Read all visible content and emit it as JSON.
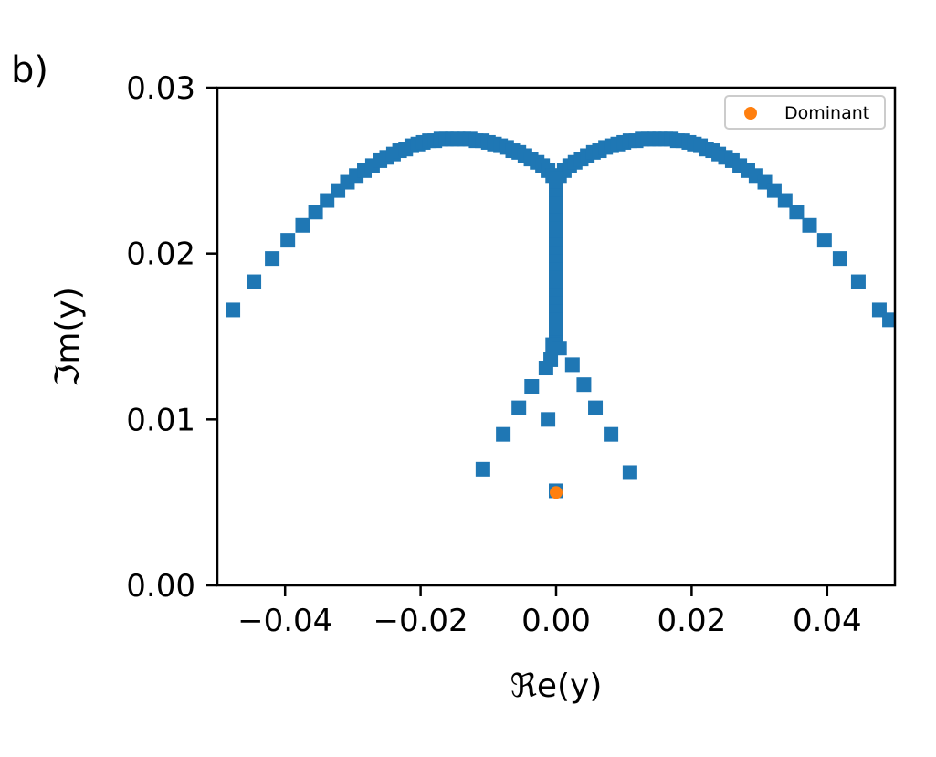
{
  "panel_label": "b)",
  "chart_data": {
    "type": "scatter",
    "xlabel": "ℜe(y)",
    "ylabel": "ℑm(y)",
    "xlim": [
      -0.05,
      0.05
    ],
    "ylim": [
      0.0,
      0.03
    ],
    "xticks": [
      -0.04,
      -0.02,
      0.0,
      0.02,
      0.04
    ],
    "xtick_labels": [
      "−0.04",
      "−0.02",
      "0.00",
      "0.02",
      "0.04"
    ],
    "yticks": [
      0.0,
      0.01,
      0.02,
      0.03
    ],
    "ytick_labels": [
      "0.00",
      "0.01",
      "0.02",
      "0.03"
    ],
    "grid": false,
    "legend_position": "top-right",
    "colors": {
      "series": "#1f77b4",
      "dominant": "#ff7f0e"
    },
    "series": [
      {
        "marker": "square",
        "points": [
          [
            -0.0477,
            0.0166
          ],
          [
            -0.0446,
            0.0183
          ],
          [
            -0.0419,
            0.0197
          ],
          [
            -0.0396,
            0.0208
          ],
          [
            -0.0374,
            0.0217
          ],
          [
            -0.0355,
            0.0225
          ],
          [
            -0.0338,
            0.0232
          ],
          [
            -0.0322,
            0.0238
          ],
          [
            -0.0308,
            0.0243
          ],
          [
            -0.0295,
            0.0247
          ],
          [
            -0.0283,
            0.025
          ],
          [
            -0.0271,
            0.0253
          ],
          [
            -0.026,
            0.0256
          ],
          [
            -0.025,
            0.0258
          ],
          [
            -0.024,
            0.026
          ],
          [
            -0.0231,
            0.0262
          ],
          [
            -0.0222,
            0.0263
          ],
          [
            -0.0213,
            0.0265
          ],
          [
            -0.0204,
            0.0266
          ],
          [
            -0.0196,
            0.0267
          ],
          [
            -0.0187,
            0.0268
          ],
          [
            -0.0179,
            0.0268
          ],
          [
            -0.017,
            0.0269
          ],
          [
            -0.0162,
            0.0269
          ],
          [
            -0.0153,
            0.0269
          ],
          [
            -0.0145,
            0.0269
          ],
          [
            -0.0136,
            0.0269
          ],
          [
            -0.0127,
            0.0269
          ],
          [
            -0.0118,
            0.0268
          ],
          [
            -0.0109,
            0.0268
          ],
          [
            -0.01,
            0.0267
          ],
          [
            -0.0091,
            0.0266
          ],
          [
            -0.0082,
            0.0265
          ],
          [
            -0.0073,
            0.0264
          ],
          [
            -0.0064,
            0.0262
          ],
          [
            -0.0055,
            0.0261
          ],
          [
            -0.0046,
            0.0259
          ],
          [
            -0.0037,
            0.0257
          ],
          [
            -0.0028,
            0.0255
          ],
          [
            -0.002,
            0.0253
          ],
          [
            -0.0012,
            0.025
          ],
          [
            -0.0005,
            0.0247
          ],
          [
            0.0005,
            0.0247
          ],
          [
            0.0012,
            0.025
          ],
          [
            0.002,
            0.0253
          ],
          [
            0.0028,
            0.0255
          ],
          [
            0.0037,
            0.0257
          ],
          [
            0.0046,
            0.0259
          ],
          [
            0.0055,
            0.0261
          ],
          [
            0.0064,
            0.0262
          ],
          [
            0.0073,
            0.0264
          ],
          [
            0.0082,
            0.0265
          ],
          [
            0.0091,
            0.0266
          ],
          [
            0.01,
            0.0267
          ],
          [
            0.0109,
            0.0268
          ],
          [
            0.0118,
            0.0268
          ],
          [
            0.0127,
            0.0269
          ],
          [
            0.0136,
            0.0269
          ],
          [
            0.0145,
            0.0269
          ],
          [
            0.0153,
            0.0269
          ],
          [
            0.0162,
            0.0269
          ],
          [
            0.017,
            0.0269
          ],
          [
            0.0179,
            0.0268
          ],
          [
            0.0187,
            0.0268
          ],
          [
            0.0196,
            0.0267
          ],
          [
            0.0204,
            0.0266
          ],
          [
            0.0213,
            0.0265
          ],
          [
            0.0222,
            0.0263
          ],
          [
            0.0231,
            0.0262
          ],
          [
            0.024,
            0.026
          ],
          [
            0.025,
            0.0258
          ],
          [
            0.026,
            0.0256
          ],
          [
            0.0271,
            0.0253
          ],
          [
            0.0283,
            0.025
          ],
          [
            0.0295,
            0.0247
          ],
          [
            0.0308,
            0.0243
          ],
          [
            0.0322,
            0.0238
          ],
          [
            0.0338,
            0.0232
          ],
          [
            0.0355,
            0.0225
          ],
          [
            0.0374,
            0.0217
          ],
          [
            0.0396,
            0.0208
          ],
          [
            0.0419,
            0.0197
          ],
          [
            0.0446,
            0.0183
          ],
          [
            0.0477,
            0.0166
          ],
          [
            0.0492,
            0.016
          ],
          [
            0.0,
            0.0245
          ],
          [
            0.0,
            0.024
          ],
          [
            0.0,
            0.0235
          ],
          [
            0.0,
            0.023
          ],
          [
            0.0,
            0.0225
          ],
          [
            0.0,
            0.022
          ],
          [
            0.0,
            0.0215
          ],
          [
            0.0,
            0.021
          ],
          [
            0.0,
            0.0205
          ],
          [
            0.0,
            0.02
          ],
          [
            0.0,
            0.0195
          ],
          [
            0.0,
            0.019
          ],
          [
            0.0,
            0.0185
          ],
          [
            0.0,
            0.018
          ],
          [
            0.0,
            0.0175
          ],
          [
            0.0,
            0.017
          ],
          [
            0.0,
            0.0165
          ],
          [
            0.0,
            0.016
          ],
          [
            0.0,
            0.0155
          ],
          [
            0.0,
            0.015
          ],
          [
            0.0,
            0.0146
          ],
          [
            -0.0005,
            0.0145
          ],
          [
            0.0005,
            0.0143
          ],
          [
            -0.0008,
            0.0136
          ],
          [
            -0.0015,
            0.0131
          ],
          [
            0.0024,
            0.0133
          ],
          [
            -0.0036,
            0.012
          ],
          [
            0.0041,
            0.0121
          ],
          [
            -0.0055,
            0.0107
          ],
          [
            0.0058,
            0.0107
          ],
          [
            -0.0012,
            0.01
          ],
          [
            -0.0078,
            0.0091
          ],
          [
            0.0081,
            0.0091
          ],
          [
            -0.0108,
            0.007
          ],
          [
            0.0109,
            0.0068
          ],
          [
            0.0,
            0.0057
          ]
        ]
      },
      {
        "name": "Dominant",
        "marker": "circle",
        "points": [
          [
            0.0,
            0.0056
          ]
        ]
      }
    ]
  }
}
